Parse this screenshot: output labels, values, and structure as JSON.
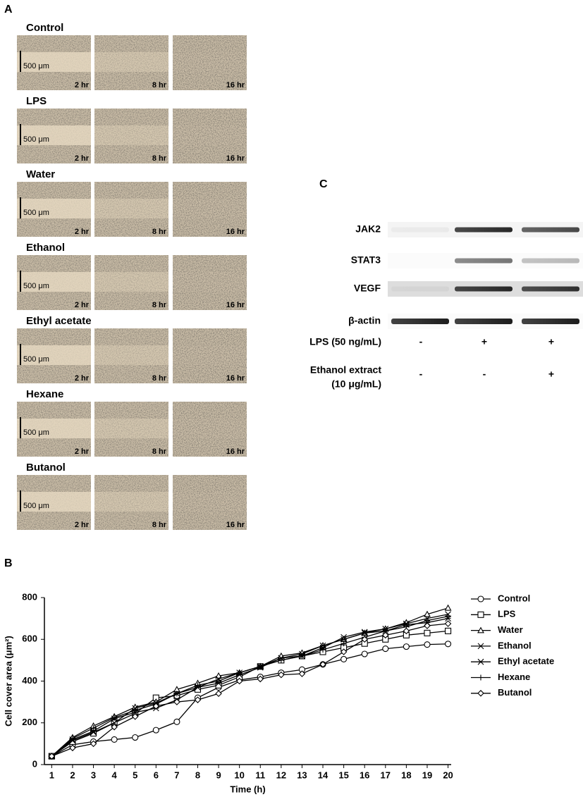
{
  "panels": {
    "a": "A",
    "b": "B",
    "c": "C"
  },
  "wound_healing": {
    "groups": [
      "Control",
      "LPS",
      "Water",
      "Ethanol",
      "Ethyl acetate",
      "Hexane",
      "Butanol"
    ],
    "times": [
      "2 hr",
      "8 hr",
      "16 hr"
    ],
    "scale_bar": "500 μm"
  },
  "western_blot": {
    "proteins": [
      "JAK2",
      "STAT3",
      "VEGF",
      "β-actin"
    ],
    "treatments": [
      {
        "label": [
          "LPS (50 ng/mL)"
        ],
        "lanes": [
          "-",
          "+",
          "+"
        ]
      },
      {
        "label": [
          "Ethanol extract",
          "(10 μg/mL)"
        ],
        "lanes": [
          "-",
          "-",
          "+"
        ]
      }
    ]
  },
  "chart_data": {
    "type": "line",
    "x_label": "Time (h)",
    "y_label": "Cell cover area (μm²)",
    "x": [
      1,
      2,
      3,
      4,
      5,
      6,
      7,
      8,
      9,
      10,
      11,
      12,
      13,
      14,
      15,
      16,
      17,
      18,
      19,
      20
    ],
    "xlim": [
      0.65,
      20.15
    ],
    "xticks": [
      1,
      2,
      3,
      4,
      5,
      6,
      7,
      8,
      9,
      10,
      11,
      12,
      13,
      14,
      15,
      16,
      17,
      18,
      19,
      20
    ],
    "ylim": [
      0,
      800
    ],
    "yticks": [
      0,
      200,
      400,
      600,
      800
    ],
    "grid": false,
    "legend": "right",
    "series": [
      {
        "name": "Control",
        "color": "#000000",
        "marker": "circle",
        "values": [
          40,
          95,
          110,
          120,
          130,
          165,
          205,
          320,
          370,
          405,
          420,
          440,
          455,
          480,
          505,
          530,
          555,
          565,
          575,
          578
        ]
      },
      {
        "name": "LPS",
        "color": "#000000",
        "marker": "square",
        "values": [
          40,
          110,
          150,
          200,
          245,
          320,
          330,
          360,
          380,
          420,
          470,
          500,
          520,
          540,
          560,
          580,
          600,
          620,
          630,
          640
        ]
      },
      {
        "name": "Water",
        "color": "#000000",
        "marker": "triangle",
        "values": [
          40,
          130,
          185,
          230,
          275,
          300,
          360,
          390,
          425,
          440,
          470,
          520,
          535,
          570,
          600,
          630,
          650,
          680,
          720,
          750
        ]
      },
      {
        "name": "Ethanol",
        "color": "#000000",
        "marker": "x",
        "values": [
          40,
          115,
          155,
          200,
          270,
          295,
          340,
          370,
          410,
          440,
          470,
          510,
          520,
          560,
          610,
          635,
          650,
          675,
          700,
          720
        ]
      },
      {
        "name": "Ethyl acetate",
        "color": "#000000",
        "marker": "asterisk",
        "values": [
          40,
          120,
          160,
          220,
          250,
          270,
          310,
          370,
          390,
          430,
          465,
          510,
          530,
          570,
          600,
          630,
          640,
          670,
          680,
          700
        ]
      },
      {
        "name": "Hexane",
        "color": "#000000",
        "marker": "plus",
        "values": [
          40,
          125,
          175,
          225,
          260,
          290,
          340,
          380,
          400,
          440,
          470,
          500,
          520,
          550,
          580,
          610,
          640,
          660,
          690,
          710
        ]
      },
      {
        "name": "Butanol",
        "color": "#000000",
        "marker": "diamond",
        "values": [
          40,
          80,
          100,
          180,
          230,
          280,
          300,
          310,
          340,
          400,
          410,
          430,
          435,
          480,
          540,
          600,
          620,
          640,
          665,
          675
        ]
      }
    ]
  }
}
